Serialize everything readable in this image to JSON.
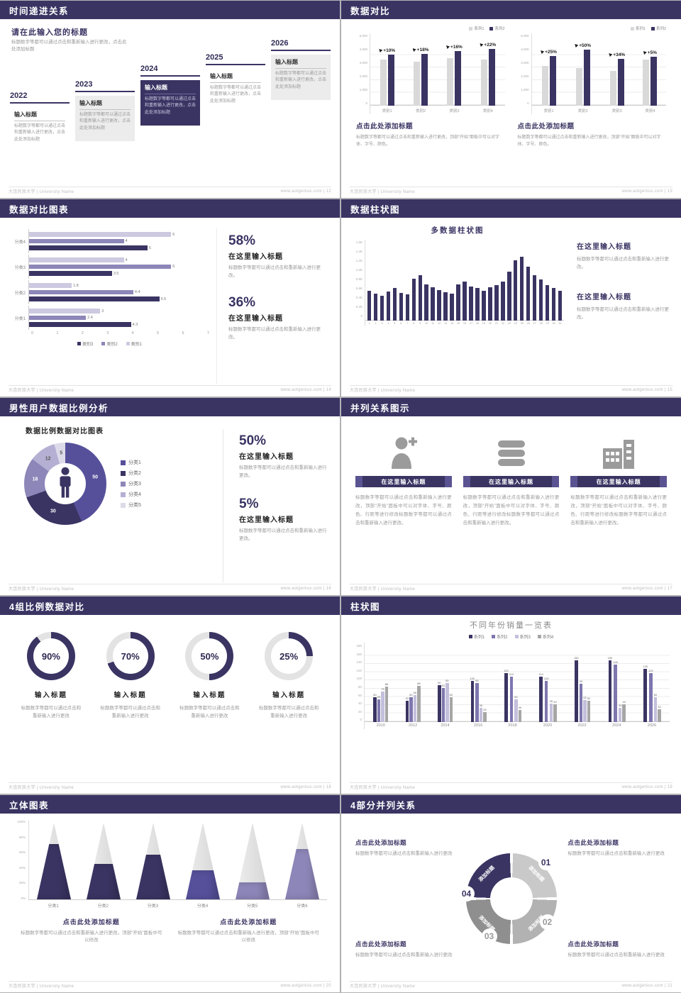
{
  "theme": {
    "primary": "#3a3463",
    "mid": "#7d76ae",
    "light": "#c3bfdc",
    "gray": "#d9d9d9"
  },
  "footer_left": "大连民族大学 | University Name",
  "slides": {
    "s12": {
      "title": "时间递进关系",
      "footer_right": "www.aotgenius.com | 12",
      "heading": "请在此输入您的标题",
      "subtext": "标题数字等都可以通过点击和重新输入进行更改，点击此处添加标题",
      "items": [
        {
          "year": "2022",
          "label": "输入标题",
          "text": "标题数字等都可以通过点击和重新输入进行更改，点击此处添加标题"
        },
        {
          "year": "2023",
          "label": "输入标题",
          "text": "标题数字等都可以通过点击和重新输入进行更改，点击此处添加标题"
        },
        {
          "year": "2024",
          "label": "输入标题",
          "text": "标题数字等都可以通过点击和重新输入进行更改，点击此处添加标题"
        },
        {
          "year": "2025",
          "label": "输入标题",
          "text": "标题数字等都可以通过点击和重新输入进行更改，点击此处添加标题"
        },
        {
          "year": "2026",
          "label": "输入标题",
          "text": "标题数字等都可以通过点击和重新输入进行更改，点击此处添加标题"
        }
      ]
    },
    "s13": {
      "title": "数据对比",
      "footer_right": "www.aotgenius.com | 13",
      "legend": [
        {
          "label": "系列1",
          "color": "#d9d9d9"
        },
        {
          "label": "系列2",
          "color": "#3a3463"
        }
      ],
      "y_ticks": [
        "5,000",
        "4,000",
        "3,000",
        "2,000",
        "1,000",
        "0"
      ],
      "y_max": 5000,
      "charts": [
        {
          "categories": [
            "类别1",
            "类别2",
            "类别3",
            "类别4"
          ],
          "series": [
            [
              3700,
              3500,
              3800,
              3700
            ],
            [
              4100,
              4150,
              4400,
              4550
            ]
          ],
          "pct": [
            "+10%",
            "+18%",
            "+16%",
            "+22%"
          ]
        },
        {
          "categories": [
            "类别1",
            "类别2",
            "类别3",
            "类别4"
          ],
          "series": [
            [
              3200,
              3000,
              2800,
              3700
            ],
            [
              4000,
              4500,
              3750,
              3900
            ]
          ],
          "pct": [
            "+25%",
            "+50%",
            "+34%",
            "+5%"
          ]
        }
      ],
      "caption_title": "点击此处添加标题",
      "caption_text": "标题数字等都可以通过点击和重新输入进行更改，顶部“开始”面板中可以对字体、字号、颜色。"
    },
    "s14": {
      "title": "数据对比图表",
      "footer_right": "www.aotgenius.com | 14",
      "categories": [
        "分类4",
        "分类3",
        "分类2",
        "分类1"
      ],
      "rows": [
        [
          6,
          4,
          5
        ],
        [
          4,
          6,
          3.5
        ],
        [
          1.8,
          4.4,
          5.5
        ],
        [
          3,
          2.4,
          4.3
        ]
      ],
      "series_colors": [
        "#cdc9e0",
        "#8d86b8",
        "#3a3463"
      ],
      "x_ticks": [
        "0",
        "1",
        "2",
        "3",
        "4",
        "5",
        "6",
        "7"
      ],
      "x_max": 7,
      "legend": [
        {
          "label": "类别3",
          "color": "#3a3463"
        },
        {
          "label": "类别2",
          "color": "#8d86b8"
        },
        {
          "label": "类别1",
          "color": "#cdc9e0"
        }
      ],
      "stats": [
        {
          "pct": "58%",
          "title": "在这里输入标题",
          "text": "标题数字等都可以通过点击和重新输入进行更改。"
        },
        {
          "pct": "36%",
          "title": "在这里输入标题",
          "text": "标题数字等都可以通过点击和重新输入进行更改。"
        }
      ]
    },
    "s15": {
      "title": "数据柱状图",
      "footer_right": "www.aotgenius.com | 15",
      "chart_title": "多数据柱状图",
      "y_ticks": [
        "1.6K",
        "1.4K",
        "1.2K",
        "1.0K",
        "0.8K",
        "0.6K",
        "0.4K",
        "0.2K",
        "0"
      ],
      "y_max": 1600,
      "x_labels": [
        "1",
        "2",
        "3",
        "4",
        "5",
        "6",
        "7",
        "8",
        "9",
        "10",
        "11",
        "12",
        "13",
        "14",
        "15",
        "16",
        "17",
        "18",
        "19",
        "20",
        "21",
        "22",
        "23",
        "24",
        "25",
        "26",
        "27",
        "28",
        "29",
        "30",
        "31"
      ],
      "values": [
        700,
        640,
        580,
        690,
        760,
        650,
        620,
        980,
        1060,
        850,
        780,
        720,
        660,
        640,
        850,
        920,
        800,
        760,
        700,
        780,
        840,
        920,
        1150,
        1420,
        1500,
        1260,
        1060,
        960,
        840,
        760,
        700
      ],
      "blocks": [
        {
          "title": "在这里输入标题",
          "text": "标题数字等都可以通过点击和重新输入进行更改。"
        },
        {
          "title": "在这里输入标题",
          "text": "标题数字等都可以通过点击和重新输入进行更改。"
        }
      ]
    },
    "s16": {
      "title": "男性用户数据比例分析",
      "footer_right": "www.aotgenius.com | 16",
      "chart_title": "数据比例数据对比图表",
      "segments": [
        {
          "label": "50",
          "value": 50,
          "color": "#56509b",
          "label_color": "#ffffff"
        },
        {
          "label": "30",
          "value": 30,
          "color": "#3a3463",
          "label_color": "#ffffff"
        },
        {
          "label": "18",
          "value": 18,
          "color": "#8d86b8",
          "label_color": "#ffffff"
        },
        {
          "label": "12",
          "value": 12,
          "color": "#b5b0d3",
          "label_color": "#555555"
        },
        {
          "label": "5",
          "value": 5,
          "color": "#dddbe9",
          "label_color": "#555555"
        }
      ],
      "legend": [
        {
          "label": "分类1",
          "color": "#56509b"
        },
        {
          "label": "分类2",
          "color": "#3a3463"
        },
        {
          "label": "分类3",
          "color": "#8d86b8"
        },
        {
          "label": "分类4",
          "color": "#b5b0d3"
        },
        {
          "label": "分类5",
          "color": "#dddbe9"
        }
      ],
      "stats": [
        {
          "pct": "50%",
          "title": "在这里输入标题",
          "text": "标题数字等都可以通过点击和重新输入进行更改。"
        },
        {
          "pct": "5%",
          "title": "在这里输入标题",
          "text": "标题数字等都可以通过点击和重新输入进行更改。"
        }
      ]
    },
    "s17": {
      "title": "并列关系图示",
      "footer_right": "www.aotgenius.com | 17",
      "cols": [
        {
          "icon": "nurse-icon",
          "header": "在这里输入标题",
          "text": "标题数字等都可以通过点击和重新输入进行更改，顶部“开始”面板中可以对字体、字号、颜色、行距等进行修改标题数字等都可以通过点击和重新输入进行更改。"
        },
        {
          "icon": "database-icon",
          "header": "在这里输入标题",
          "text": "标题数字等都可以通过点击和重新输入进行更改，顶部“开始”面板中可以对字体、字号、颜色、行距等进行修改标题数字等都可以通过点击和重新输入进行更改。"
        },
        {
          "icon": "factory-icon",
          "header": "在这里输入标题",
          "text": "标题数字等都可以通过点击和重新输入进行更改，顶部“开始”面板中可以对字体、字号、颜色、行距等进行修改标题数字等都可以通过点击和重新输入进行更改。"
        }
      ]
    },
    "s18": {
      "title": "4组比例数据对比",
      "footer_right": "www.aotgenius.com | 18",
      "ring_color": "#3a3463",
      "ring_track": "#e3e3e3",
      "rings": [
        {
          "value": 90,
          "label": "90%",
          "title": "输入标题",
          "text": "标题数字等都可以通过点击和重新输入进行更改"
        },
        {
          "value": 70,
          "label": "70%",
          "title": "输入标题",
          "text": "标题数字等都可以通过点击和重新输入进行更改"
        },
        {
          "value": 50,
          "label": "50%",
          "title": "输入标题",
          "text": "标题数字等都可以通过点击和重新输入进行更改"
        },
        {
          "value": 25,
          "label": "25%",
          "title": "输入标题",
          "text": "标题数字等都可以通过点击和重新输入进行更改"
        }
      ]
    },
    "s19": {
      "title": "柱状图",
      "footer_right": "www.aotgenius.com | 19",
      "chart_title": "不同年份销量一览表",
      "y_ticks": [
        "180",
        "160",
        "140",
        "120",
        "100",
        "80",
        "60",
        "40",
        "20",
        "0"
      ],
      "y_max": 180,
      "categories": [
        "2010",
        "2012",
        "2014",
        "2016",
        "2018",
        "2020",
        "2022",
        "2024",
        "2026"
      ],
      "series": [
        {
          "name": "系列1",
          "color": "#3a3463",
          "values": [
            60,
            52,
            90,
            100,
            120,
            110,
            150,
            150,
            130
          ]
        },
        {
          "name": "系列2",
          "color": "#7d76ae",
          "values": [
            55,
            60,
            83,
            95,
            110,
            100,
            93,
            140,
            120
          ]
        },
        {
          "name": "系列3",
          "color": "#c3bfdc",
          "values": [
            75,
            65,
            95,
            35,
            55,
            45,
            53,
            35,
            60
          ]
        },
        {
          "name": "系列4",
          "color": "#a6a6a6",
          "values": [
            86,
            88,
            60,
            25,
            30,
            43,
            52,
            43,
            32
          ]
        }
      ]
    },
    "s20": {
      "title": "立体图表",
      "footer_right": "www.aotgenius.com | 20",
      "y_ticks": [
        "100%",
        "80%",
        "60%",
        "40%",
        "20%",
        "0%"
      ],
      "cones": [
        {
          "label": "分类1",
          "value": 72,
          "color": "#3a3463"
        },
        {
          "label": "分类2",
          "value": 46,
          "color": "#3a3463"
        },
        {
          "label": "分类3",
          "value": 58,
          "color": "#3a3463"
        },
        {
          "label": "分类4",
          "value": 38,
          "color": "#56509b"
        },
        {
          "label": "分类5",
          "value": 22,
          "color": "#8d86b8"
        },
        {
          "label": "分类6",
          "value": 66,
          "color": "#8d86b8"
        }
      ],
      "captions": [
        {
          "title": "点击此处添加标题",
          "text": "标题数字等都可以通过点击和重新输入进行更改，顶部“开始”面板中可以修改"
        },
        {
          "title": "点击此处添加标题",
          "text": "标题数字等都可以通过点击和重新输入进行更改，顶部“开始”面板中可以修改"
        }
      ]
    },
    "s21": {
      "title": "4部分并列关系",
      "footer_right": "www.aotgenius.com | 21",
      "ring_segments": [
        {
          "label": "添加标题",
          "color": "#c9c9c9"
        },
        {
          "label": "添加标题",
          "color": "#b2b2b2"
        },
        {
          "label": "添加标题",
          "color": "#8f8f8f"
        },
        {
          "label": "添加标题",
          "color": "#3a3463"
        }
      ],
      "numbers": [
        {
          "n": "01",
          "color": "#3a3463"
        },
        {
          "n": "02",
          "color": "#9a9a9a"
        },
        {
          "n": "03",
          "color": "#9a9a9a"
        },
        {
          "n": "04",
          "color": "#3a3463"
        }
      ],
      "blocks": [
        {
          "title": "点击此处添加标题",
          "text": "标题数字等都可以通过点击和重新输入进行更改"
        },
        {
          "title": "点击此处添加标题",
          "text": "标题数字等都可以通过点击和重新输入进行更改"
        },
        {
          "title": "点击此处添加标题",
          "text": "标题数字等都可以通过点击和重新输入进行更改"
        },
        {
          "title": "点击此处添加标题",
          "text": "标题数字等都可以通过点击和重新输入进行更改"
        }
      ]
    }
  }
}
